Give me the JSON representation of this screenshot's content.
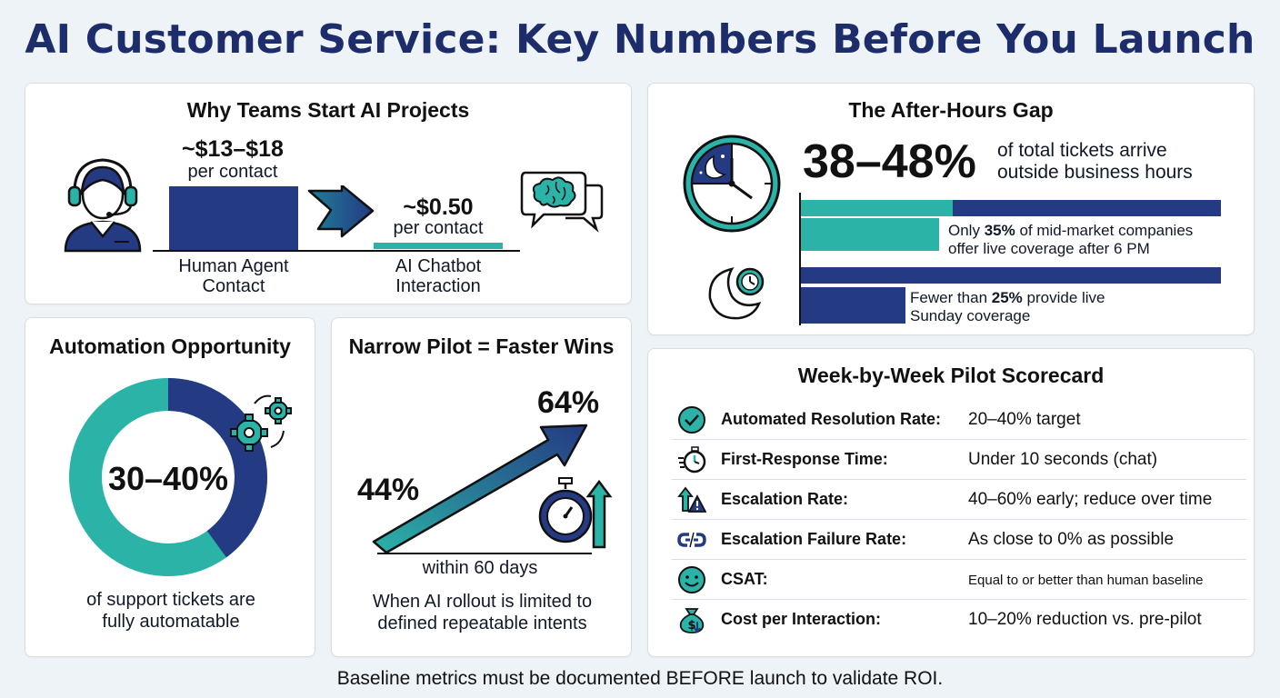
{
  "title": "AI Customer Service: Key Numbers Before You Launch",
  "colors": {
    "navy": "#243a82",
    "teal": "#2bb3a8",
    "title": "#1d2d6b"
  },
  "why_teams": {
    "title": "Why Teams Start AI Projects",
    "human": {
      "value": "~$13–$18",
      "unit": "per contact",
      "label_line1": "Human Agent",
      "label_line2": "Contact"
    },
    "ai": {
      "value": "~$0.50",
      "unit": "per contact",
      "label_line1": "AI Chatbot",
      "label_line2": "Interaction"
    }
  },
  "after_hours": {
    "title": "The After-Hours Gap",
    "headline": "38–48%",
    "headline_text_line1": "of total tickets arrive",
    "headline_text_line2": "outside business hours",
    "bar1": {
      "prefix": "Only ",
      "value": "35%",
      "suffix": " of mid-market companies",
      "line2": "offer live coverage after 6 PM",
      "fraction": 0.35
    },
    "bar2": {
      "prefix": "Fewer than ",
      "value": "25%",
      "suffix": " provide live",
      "line2": "Sunday coverage",
      "fraction": 0.25
    }
  },
  "automation": {
    "title": "Automation Opportunity",
    "value": "30–40%",
    "caption_line1": "of support tickets are",
    "caption_line2": "fully automatable",
    "navy_fraction": 0.4
  },
  "pilot": {
    "title": "Narrow Pilot = Faster Wins",
    "start": "44%",
    "end": "64%",
    "period": "within 60 days",
    "caption_line1": "When AI rollout is limited to",
    "caption_line2": "defined repeatable intents"
  },
  "scorecard": {
    "title": "Week-by-Week Pilot Scorecard",
    "rows": [
      {
        "icon": "check-circle-icon",
        "metric": "Automated Resolution Rate:",
        "target": "20–40% target"
      },
      {
        "icon": "stopwatch-icon",
        "metric": "First-Response Time:",
        "target": "Under 10 seconds (chat)"
      },
      {
        "icon": "escalation-warning-icon",
        "metric": "Escalation Rate:",
        "target": "40–60% early; reduce over time"
      },
      {
        "icon": "broken-link-icon",
        "metric": "Escalation Failure Rate:",
        "target": "As close to 0% as possible"
      },
      {
        "icon": "smiley-icon",
        "metric": "CSAT:",
        "target": "Equal to or better than human baseline"
      },
      {
        "icon": "money-bag-icon",
        "metric": "Cost per Interaction:",
        "target": "10–20% reduction vs. pre-pilot"
      }
    ]
  },
  "footer": "Baseline metrics must be documented BEFORE launch to validate ROI."
}
